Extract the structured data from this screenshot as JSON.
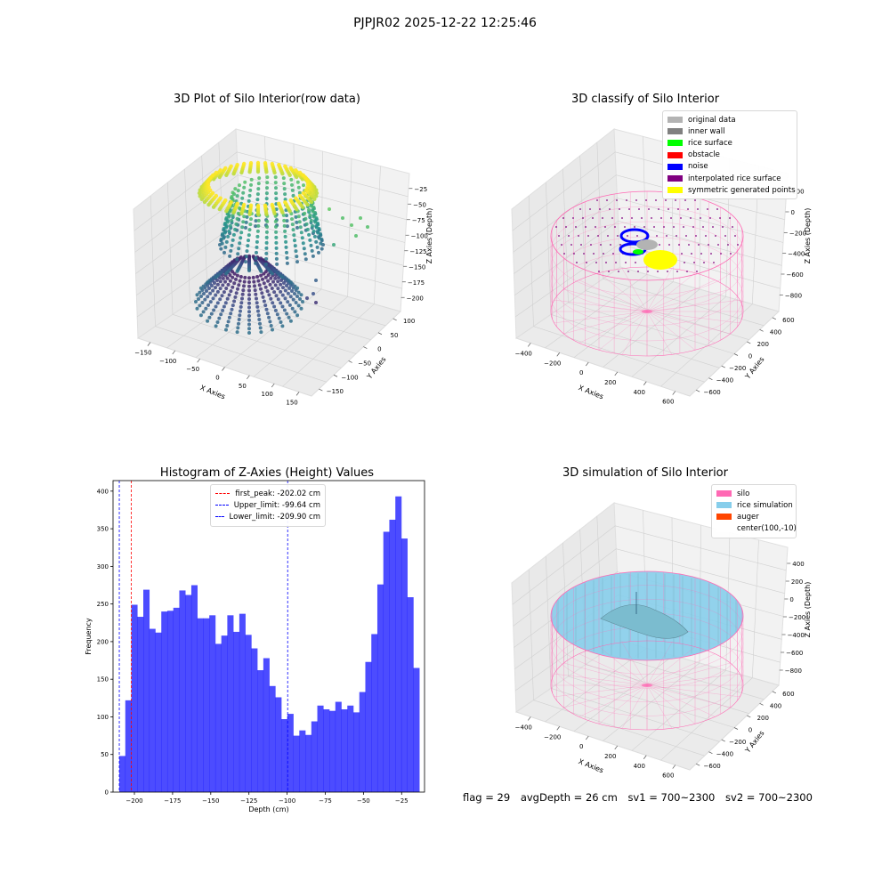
{
  "figure": {
    "suptitle": "PJPJR02 2025-12-22 12:25:46",
    "footer": {
      "flag": "flag = 29",
      "avg_depth": "avgDepth = 26 cm",
      "sv1": "sv1 = 700~2300",
      "sv2": "sv2 = 700~2300"
    }
  },
  "chart_data": [
    {
      "type": "scatter",
      "title": "3D Plot of Silo Interior(row data)",
      "xlabel": "X Axies",
      "ylabel": "Y Axies",
      "zlabel": "Z Axies (Depth)",
      "x_ticks": [
        "−150",
        "−100",
        "−50",
        "0",
        "50",
        "100",
        "150"
      ],
      "y_ticks": [
        "100",
        "50",
        "0",
        "−50",
        "−100",
        "−150"
      ],
      "z_ticks": [
        "−25",
        "−50",
        "−75",
        "−100",
        "−125",
        "−150",
        "−175",
        "−200"
      ],
      "colormap": "viridis"
    },
    {
      "type": "scatter",
      "title": "3D classify of Silo Interior",
      "xlabel": "X Axies",
      "ylabel": "Y Axies",
      "zlabel": "Z Axies (Depth)",
      "x_ticks": [
        "−400",
        "−200",
        "0",
        "200",
        "400",
        "600"
      ],
      "y_ticks": [
        "600",
        "400",
        "200",
        "0",
        "−200",
        "−400",
        "−600"
      ],
      "z_ticks": [
        "200",
        "0",
        "−200",
        "−400",
        "−600",
        "−800"
      ],
      "legend": [
        {
          "label": "original data",
          "color": "#b3b3b3"
        },
        {
          "label": "inner wall",
          "color": "#808080"
        },
        {
          "label": "rice surface",
          "color": "#00ff00"
        },
        {
          "label": "obstacle",
          "color": "#ff0000"
        },
        {
          "label": "noise",
          "color": "#0000ff"
        },
        {
          "label": "interpolated rice surface",
          "color": "#800080"
        },
        {
          "label": "symmetric generated points",
          "color": "#ffff00"
        }
      ]
    },
    {
      "type": "bar",
      "title": "Histogram of Z-Axies (Height) Values",
      "xlabel": "Depth (cm)",
      "ylabel": "Frequency",
      "xlim": [
        -214,
        -10
      ],
      "ylim": [
        0,
        414
      ],
      "x_ticks": [
        -200,
        -175,
        -150,
        -125,
        -100,
        -75,
        -50,
        -25
      ],
      "y_ticks": [
        0,
        50,
        100,
        150,
        200,
        250,
        300,
        350,
        400
      ],
      "bin_start": -209.9,
      "bin_width": 3.93,
      "values": [
        48,
        122,
        249,
        233,
        269,
        217,
        212,
        240,
        241,
        245,
        268,
        262,
        275,
        231,
        231,
        235,
        197,
        208,
        235,
        213,
        237,
        209,
        191,
        162,
        178,
        141,
        126,
        97,
        104,
        75,
        82,
        76,
        94,
        115,
        110,
        108,
        120,
        110,
        115,
        106,
        133,
        173,
        210,
        276,
        346,
        362,
        393,
        337,
        259,
        165
      ],
      "color": "#0000ff",
      "lines": [
        {
          "label": "first_peak: -202.02 cm",
          "x": -202.02,
          "color": "#ff0000"
        },
        {
          "label": "Upper_limit: -99.64 cm",
          "x": -99.64,
          "color": "#0000ff"
        },
        {
          "label": "Lower_limit: -209.90 cm",
          "x": -209.9,
          "color": "#0000ff"
        }
      ]
    },
    {
      "type": "scatter",
      "title": "3D simulation of Silo Interior",
      "xlabel": "X Axies",
      "ylabel": "Y Axies",
      "zlabel": "Z Axies (Depth)",
      "x_ticks": [
        "−400",
        "−200",
        "0",
        "200",
        "400",
        "600"
      ],
      "y_ticks": [
        "600",
        "400",
        "200",
        "0",
        "−200",
        "−400",
        "−600"
      ],
      "z_ticks": [
        "400",
        "200",
        "0",
        "−200",
        "−400",
        "−600",
        "−800"
      ],
      "legend": [
        {
          "label": "silo",
          "color": "#ff69b4"
        },
        {
          "label": "rice simulation",
          "color": "#87ceeb"
        },
        {
          "label": "auger",
          "color": "#ff4500"
        },
        {
          "label": "center(100,-10)",
          "color": "#ffffff"
        }
      ]
    }
  ]
}
